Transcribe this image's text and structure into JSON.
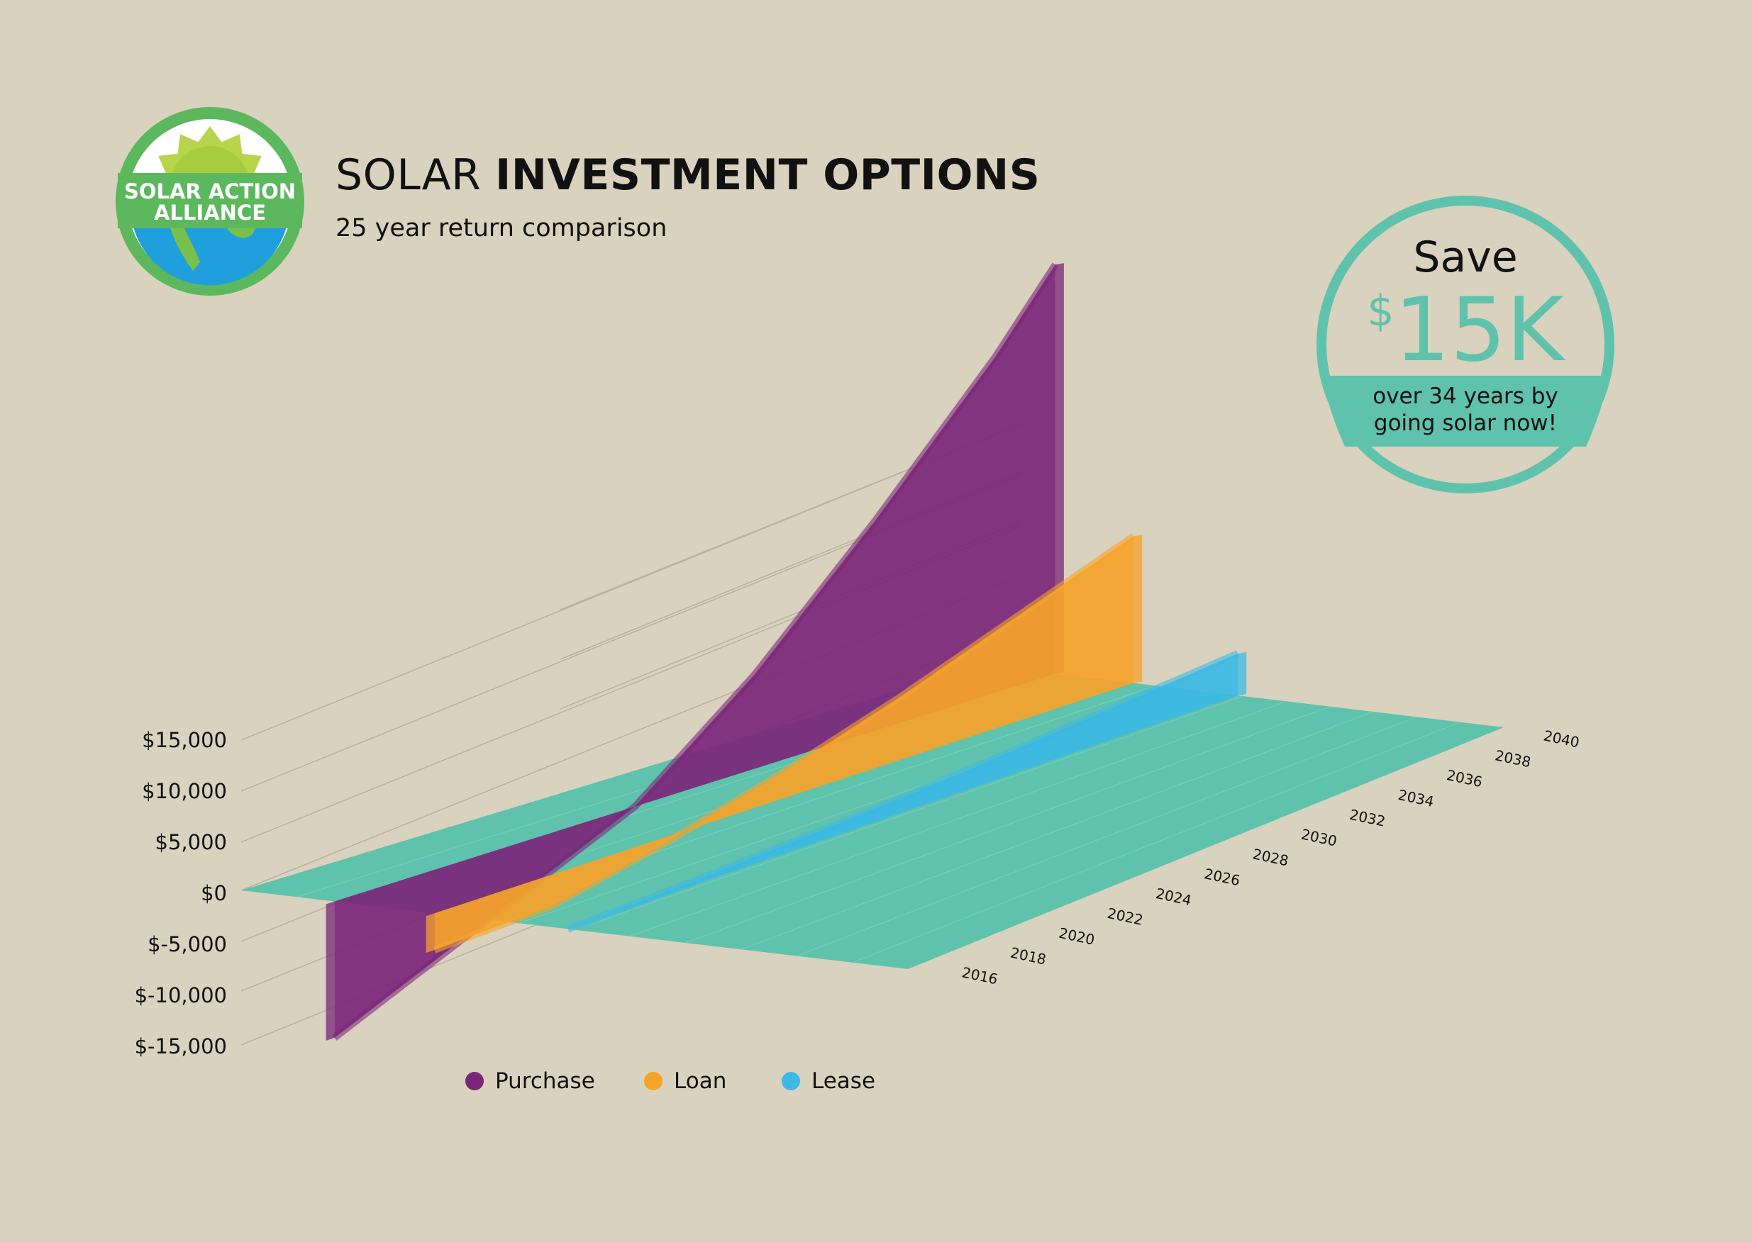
{
  "title": {
    "light": "SOLAR",
    "bold": "INVESTMENT OPTIONS"
  },
  "subtitle": "25 year return comparison",
  "logo": {
    "line1": "SOLAR ACTION",
    "line2": "ALLIANCE",
    "icon": "sun-globe-logo-icon"
  },
  "badge": {
    "save": "Save",
    "currency": "$",
    "amount": "15K",
    "line1": "over 34 years by",
    "line2": "going solar now!"
  },
  "colors": {
    "background": "#d9d2be",
    "floor": "#5fc2ac",
    "purchase": "#7b267a",
    "loan": "#f6a32a",
    "lease": "#3cb9e4",
    "accent": "#5fc2ac"
  },
  "chart_data": {
    "type": "area",
    "y_tick_labels": [
      "$15,000",
      "$10,000",
      "$5,000",
      "$0",
      "$-5,000",
      "$-10,000",
      "$-15,000"
    ],
    "y_ticks": [
      15000,
      10000,
      5000,
      0,
      -5000,
      -10000,
      -15000
    ],
    "x_tick_labels": [
      "2016",
      "2018",
      "2020",
      "2022",
      "2024",
      "2026",
      "2028",
      "2030",
      "2032",
      "2034",
      "2036",
      "2038",
      "2040"
    ],
    "legend_position": "bottom",
    "series": [
      {
        "name": "Purchase",
        "color": "#7b267a",
        "x": [
          2016,
          2026,
          2030,
          2034,
          2038,
          2040
        ],
        "values": [
          -13000,
          0,
          9000,
          20000,
          32000,
          39000
        ]
      },
      {
        "name": "Loan",
        "color": "#f6a32a",
        "x": [
          2016,
          2020,
          2024,
          2028,
          2032,
          2036,
          2040
        ],
        "values": [
          -3500,
          -3000,
          -500,
          2500,
          6000,
          10000,
          14000
        ]
      },
      {
        "name": "Lease",
        "color": "#3cb9e4",
        "x": [
          2016,
          2020,
          2024,
          2028,
          2032,
          2036,
          2040
        ],
        "values": [
          0,
          300,
          800,
          1400,
          2200,
          3100,
          4000
        ]
      }
    ]
  }
}
